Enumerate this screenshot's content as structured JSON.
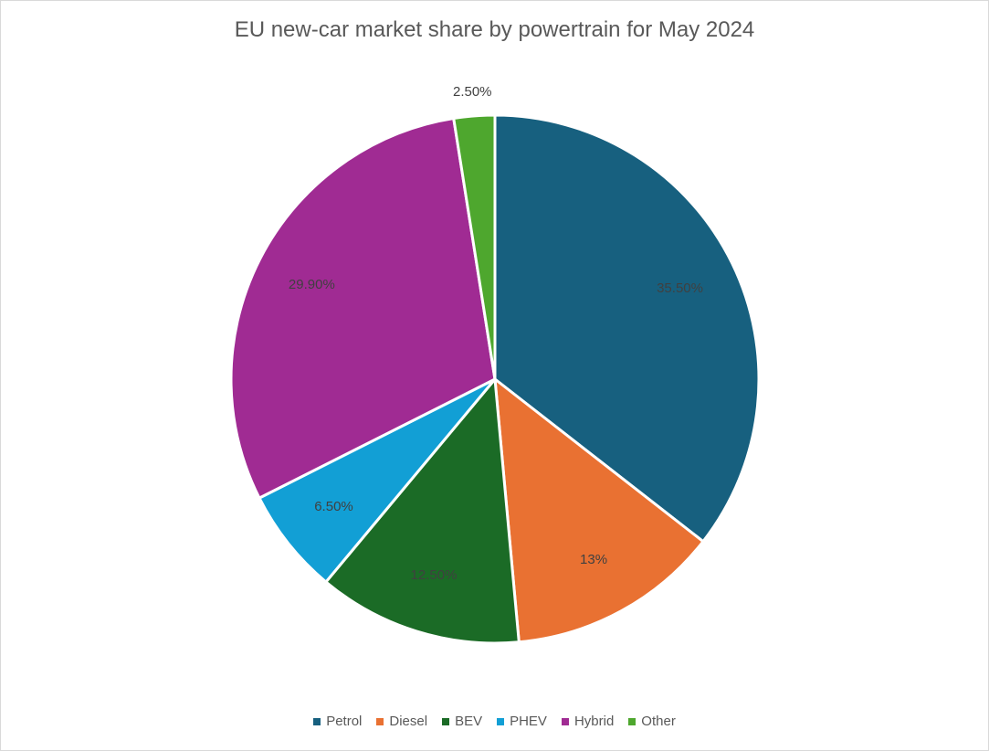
{
  "chart_data": {
    "type": "pie",
    "title": "EU new-car market share by powertrain for May 2024",
    "slices": [
      {
        "name": "Petrol",
        "value": 35.5,
        "label": "35.50%",
        "color": "#17607f"
      },
      {
        "name": "Diesel",
        "value": 13.0,
        "label": "13%",
        "color": "#e97132"
      },
      {
        "name": "BEV",
        "value": 12.5,
        "label": "12.50%",
        "color": "#1b6b26"
      },
      {
        "name": "PHEV",
        "value": 6.5,
        "label": "6.50%",
        "color": "#129fd5"
      },
      {
        "name": "Hybrid",
        "value": 29.9,
        "label": "29.90%",
        "color": "#a02b93"
      },
      {
        "name": "Other",
        "value": 2.5,
        "label": "2.50%",
        "color": "#4ea72e"
      }
    ],
    "legend_position": "bottom",
    "start_angle": "12 o'clock",
    "direction": "clockwise"
  }
}
